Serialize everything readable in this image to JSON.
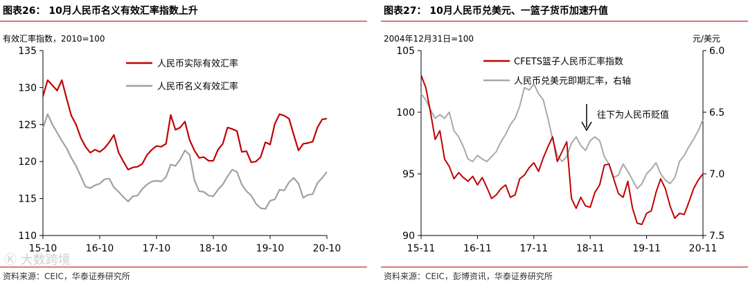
{
  "left": {
    "title": "图表26：  10月人民币名义有效汇率指数上升",
    "source": "资料来源：CEIC，华泰证券研究所",
    "chart_data": {
      "type": "line",
      "ylabel": "有效汇率指数，2010=100",
      "ylim": [
        110,
        135
      ],
      "yticks": [
        110,
        115,
        120,
        125,
        130,
        135
      ],
      "xticks": [
        "15-10",
        "16-10",
        "17-10",
        "18-10",
        "19-10",
        "20-10"
      ],
      "xlim": [
        0,
        60
      ],
      "legend_position": "top",
      "series": [
        {
          "name": "人民币实际有效汇率",
          "color": "#c00000",
          "x": [
            0,
            1,
            2,
            3,
            4,
            5,
            6,
            7,
            8,
            9,
            10,
            11,
            12,
            13,
            14,
            15,
            16,
            17,
            18,
            19,
            20,
            21,
            22,
            23,
            24,
            25,
            26,
            27,
            28,
            29,
            30,
            31,
            32,
            33,
            34,
            35,
            36,
            37,
            38,
            39,
            40,
            41,
            42,
            43,
            44,
            45,
            46,
            47,
            48,
            49,
            50,
            51,
            52,
            53,
            54,
            55,
            56,
            57,
            58,
            59,
            60
          ],
          "values": [
            128.8,
            131.0,
            130.3,
            129.6,
            131.0,
            128.5,
            126.2,
            125.0,
            123.2,
            122.0,
            121.2,
            121.6,
            121.3,
            121.8,
            122.6,
            123.6,
            121.2,
            120.0,
            118.9,
            119.2,
            119.3,
            119.7,
            120.9,
            121.6,
            122.1,
            122.0,
            122.4,
            126.3,
            124.3,
            124.6,
            125.4,
            122.9,
            121.5,
            120.5,
            120.6,
            120.1,
            120.1,
            121.6,
            122.4,
            124.6,
            124.4,
            124.1,
            121.3,
            121.4,
            119.9,
            120.0,
            120.6,
            122.6,
            122.3,
            125.1,
            126.4,
            126.2,
            125.8,
            123.6,
            121.5,
            122.4,
            122.5,
            122.7,
            124.6,
            125.7,
            125.8
          ]
        },
        {
          "name": "人民币名义有效汇率",
          "color": "#a0a0a0",
          "x": [
            0,
            1,
            2,
            3,
            4,
            5,
            6,
            7,
            8,
            9,
            10,
            11,
            12,
            13,
            14,
            15,
            16,
            17,
            18,
            19,
            20,
            21,
            22,
            23,
            24,
            25,
            26,
            27,
            28,
            29,
            30,
            31,
            32,
            33,
            34,
            35,
            36,
            37,
            38,
            39,
            40,
            41,
            42,
            43,
            44,
            45,
            46,
            47,
            48,
            49,
            50,
            51,
            52,
            53,
            54,
            55,
            56,
            57,
            58,
            59,
            60
          ],
          "values": [
            124.5,
            126.4,
            125.0,
            123.9,
            122.8,
            121.8,
            120.5,
            119.4,
            118.0,
            116.6,
            116.4,
            116.8,
            117.0,
            117.6,
            117.7,
            116.5,
            115.9,
            115.2,
            114.6,
            115.3,
            115.4,
            116.3,
            116.9,
            117.3,
            117.4,
            117.3,
            117.9,
            119.6,
            119.4,
            120.3,
            121.5,
            120.9,
            117.5,
            116.0,
            115.9,
            115.4,
            115.3,
            116.2,
            116.9,
            118.0,
            118.9,
            118.6,
            116.9,
            116.0,
            115.4,
            114.3,
            113.7,
            113.6,
            114.7,
            114.9,
            116.2,
            116.1,
            117.2,
            117.8,
            117.0,
            115.1,
            115.5,
            115.6,
            117.1,
            117.8,
            118.6
          ]
        }
      ]
    }
  },
  "right": {
    "title": "图表27：  10月人民币兑美元、一篮子货币加速升值",
    "source": "资料来源：CEIC，彭博资讯，华泰证券研究所",
    "annotation": "往下为人民币贬值",
    "chart_data": {
      "type": "line",
      "ylabel_left": "2004年12月31日=100",
      "ylabel_right": "元/美元",
      "ylim_left": [
        90,
        105
      ],
      "yticks_left": [
        90,
        95,
        100,
        105
      ],
      "ylim_right": [
        6.0,
        7.5
      ],
      "yticks_right": [
        "6.0",
        "6.5",
        "7.0",
        "7.5"
      ],
      "right_axis_inverted": true,
      "xticks": [
        "15-11",
        "16-11",
        "17-11",
        "18-11",
        "19-11",
        "20-11"
      ],
      "xlim": [
        0,
        60
      ],
      "legend_position": "top",
      "series": [
        {
          "name": "CFETS篮子人民币汇率指数",
          "axis": "left",
          "color": "#c00000",
          "x": [
            0,
            1,
            2,
            3,
            4,
            5,
            6,
            7,
            8,
            9,
            10,
            11,
            12,
            13,
            14,
            15,
            16,
            17,
            18,
            19,
            20,
            21,
            22,
            23,
            24,
            25,
            26,
            27,
            28,
            29,
            30,
            31,
            32,
            33,
            34,
            35,
            36,
            37,
            38,
            39,
            40,
            41,
            42,
            43,
            44,
            45,
            46,
            47,
            48,
            49,
            50,
            51,
            52,
            53,
            54,
            55,
            56,
            57,
            58,
            59,
            60
          ],
          "values": [
            103.0,
            102.0,
            100.0,
            97.8,
            98.5,
            96.2,
            95.6,
            94.6,
            95.1,
            94.7,
            94.4,
            94.8,
            94.1,
            94.7,
            93.9,
            93.0,
            93.3,
            93.8,
            94.1,
            93.1,
            93.3,
            94.6,
            94.9,
            95.5,
            95.9,
            95.2,
            96.3,
            97.2,
            98.0,
            96.0,
            96.8,
            97.6,
            93.0,
            92.2,
            93.1,
            92.4,
            92.3,
            93.5,
            94.1,
            95.7,
            95.8,
            94.6,
            93.4,
            93.1,
            94.4,
            92.2,
            91.0,
            90.9,
            91.8,
            92.0,
            93.5,
            94.6,
            93.8,
            92.4,
            91.4,
            91.8,
            91.7,
            92.7,
            93.8,
            94.5,
            95.0
          ]
        },
        {
          "name": "人民币兑美元即期汇率，右轴",
          "axis": "right",
          "color": "#a8a8a8",
          "x": [
            0,
            1,
            2,
            3,
            4,
            5,
            6,
            7,
            8,
            9,
            10,
            11,
            12,
            13,
            14,
            15,
            16,
            17,
            18,
            19,
            20,
            21,
            22,
            23,
            24,
            25,
            26,
            27,
            28,
            29,
            30,
            31,
            32,
            33,
            34,
            35,
            36,
            37,
            38,
            39,
            40,
            41,
            42,
            43,
            44,
            45,
            46,
            47,
            48,
            49,
            50,
            51,
            52,
            53,
            54,
            55,
            56,
            57,
            58,
            59,
            60
          ],
          "values": [
            6.35,
            6.4,
            6.48,
            6.55,
            6.52,
            6.55,
            6.5,
            6.65,
            6.7,
            6.78,
            6.88,
            6.9,
            6.85,
            6.88,
            6.9,
            6.86,
            6.82,
            6.74,
            6.68,
            6.6,
            6.55,
            6.45,
            6.3,
            6.32,
            6.27,
            6.35,
            6.4,
            6.55,
            6.72,
            6.85,
            6.9,
            6.86,
            6.75,
            6.7,
            6.77,
            6.81,
            6.73,
            6.7,
            6.73,
            6.86,
            6.92,
            7.03,
            7.01,
            6.92,
            6.98,
            7.05,
            7.12,
            7.08,
            7.0,
            6.96,
            6.91,
            7.0,
            7.05,
            7.08,
            7.03,
            6.9,
            6.85,
            6.78,
            6.72,
            6.65,
            6.56
          ]
        }
      ]
    }
  }
}
